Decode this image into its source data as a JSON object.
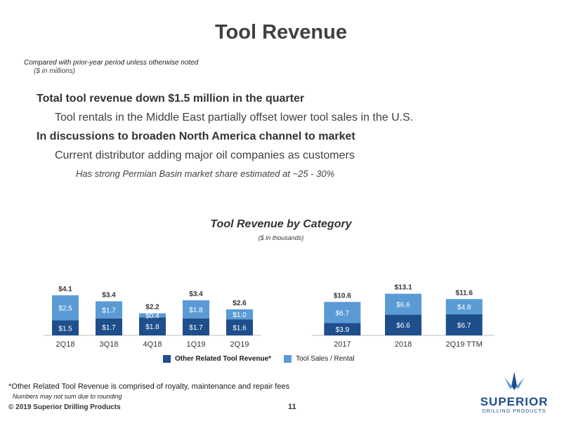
{
  "header": {
    "title": "Tool Revenue",
    "note": "Compared with prior-year period unless otherwise noted",
    "units": "($ in millions)"
  },
  "bullets": [
    {
      "level": 1,
      "text": "Total tool revenue down $1.5 million in the quarter"
    },
    {
      "level": 2,
      "text": "Tool rentals in the Middle East partially offset lower tool sales in the U.S."
    },
    {
      "level": 1,
      "text": "In discussions to broaden North America channel to market"
    },
    {
      "level": 2,
      "text": "Current distributor adding major oil companies as customers"
    },
    {
      "level": 3,
      "text": "Has strong Permian Basin market share estimated at ~25 - 30%"
    }
  ],
  "chart_heading": {
    "title": "Tool Revenue by Category",
    "subtitle": "($ in thousands)"
  },
  "colors": {
    "other_related": "#1f4e8c",
    "tool_sales": "#5b9bd5",
    "axis": "#bfbfbf"
  },
  "legend": {
    "other_label": "Other Related Tool Revenue*",
    "tool_label": "Tool Sales / Rental"
  },
  "chart_data": [
    {
      "type": "bar",
      "stacked": true,
      "categories": [
        "2Q18",
        "3Q18",
        "4Q18",
        "1Q19",
        "2Q19"
      ],
      "series": [
        {
          "name": "Other Related Tool Revenue*",
          "values": [
            1.5,
            1.7,
            1.8,
            1.7,
            1.6
          ],
          "labels": [
            "$1.5",
            "$1.7",
            "$1.8",
            "$1.7",
            "$1.6"
          ]
        },
        {
          "name": "Tool Sales / Rental",
          "values": [
            2.5,
            1.7,
            0.4,
            1.8,
            1.0
          ],
          "labels": [
            "$2.5",
            "$1.7",
            "$0.4",
            "$1.8",
            "$1.0"
          ]
        }
      ],
      "totals": [
        "$4.1",
        "$3.4",
        "$2.2",
        "$3.4",
        "$2.6"
      ],
      "total_values": [
        4.1,
        3.4,
        2.2,
        3.4,
        2.6
      ]
    },
    {
      "type": "bar",
      "stacked": true,
      "categories": [
        "2017",
        "2018",
        "2Q19 TTM"
      ],
      "series": [
        {
          "name": "Other Related Tool Revenue*",
          "values": [
            3.9,
            6.6,
            6.7
          ],
          "labels": [
            "$3.9",
            "$6.6",
            "$6.7"
          ]
        },
        {
          "name": "Tool Sales / Rental",
          "values": [
            6.7,
            6.6,
            4.8
          ],
          "labels": [
            "$6.7",
            "$6.6",
            "$4.8"
          ]
        }
      ],
      "totals": [
        "$10.6",
        "$13.1",
        "$11.6"
      ],
      "total_values": [
        10.6,
        13.1,
        11.6
      ]
    }
  ],
  "footer": {
    "footnote": "*Other Related Tool Revenue is comprised of royalty, maintenance and repair fees",
    "rounding": "Numbers may not sum due to rounding",
    "copyright": "© 2019 Superior Drilling Products",
    "page": "11",
    "logo_word": "SUPERIOR",
    "logo_sub": "DRILLING PRODUCTS"
  }
}
